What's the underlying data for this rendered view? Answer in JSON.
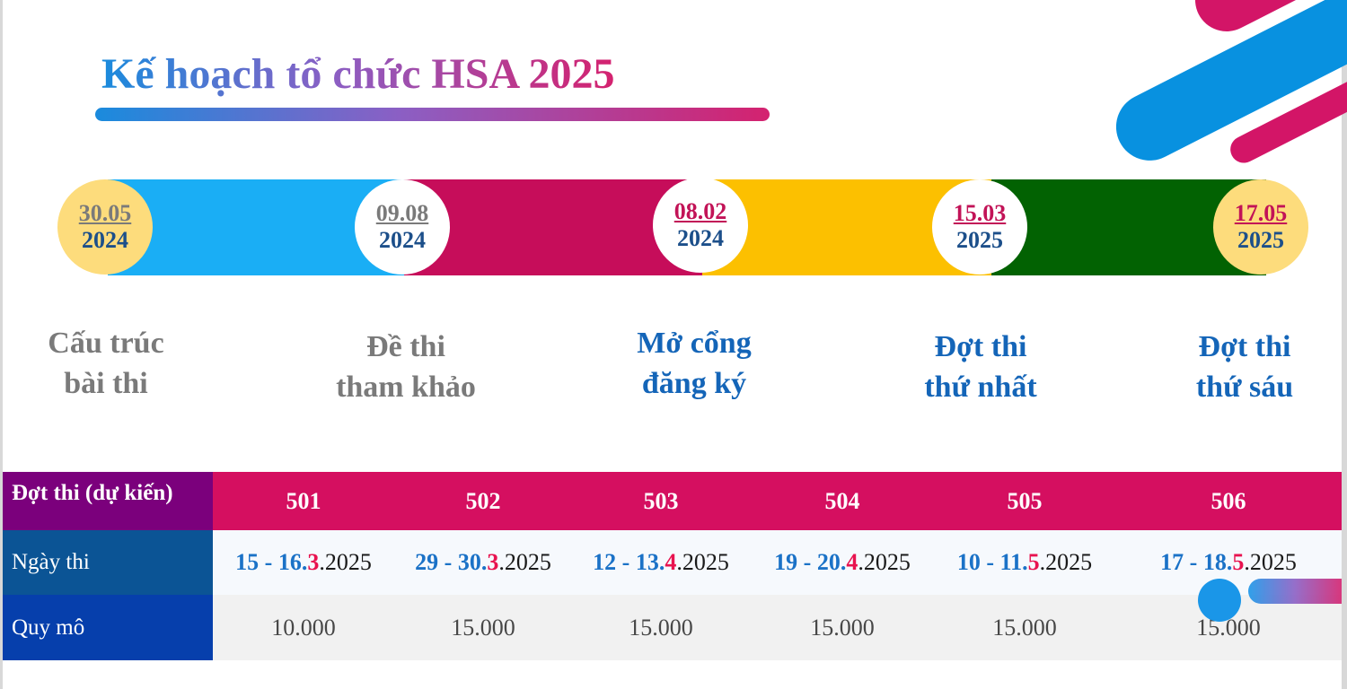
{
  "title": "Kế hoạch tổ chức HSA 2025",
  "timeline": [
    {
      "date": "30.05",
      "year": "2024",
      "label1": "Cấu trúc",
      "label2": "bài thi"
    },
    {
      "date": "09.08",
      "year": "2024",
      "label1": "Đề thi",
      "label2": "tham khảo"
    },
    {
      "date": "08.02",
      "year": "2024",
      "label1": "Mở cổng",
      "label2": "đăng ký"
    },
    {
      "date": "15.03",
      "year": "2025",
      "label1": "Đợt thi",
      "label2": "thứ nhất"
    },
    {
      "date": "17.05",
      "year": "2025",
      "label1": "Đợt thi",
      "label2": "thứ sáu"
    }
  ],
  "colors": {
    "seg1": "#1aaef5",
    "seg2": "#c60d5a",
    "seg3": "#fcc000",
    "seg4": "#026202",
    "header_bg": "#d50f60",
    "accent_pink": "#e8134f",
    "accent_blue": "#1b72c7"
  },
  "table": {
    "row_headers": [
      "Đợt thi (dự kiến)",
      "Ngày thi",
      "Quy mô"
    ],
    "sessions": [
      "501",
      "502",
      "503",
      "504",
      "505",
      "506"
    ],
    "dates": [
      {
        "days": "15 - 16.",
        "month": "3",
        "year": ".2025"
      },
      {
        "days": "29 - 30.",
        "month": "3",
        "year": ".2025"
      },
      {
        "days": "12 - 13.",
        "month": "4",
        "year": ".2025"
      },
      {
        "days": "19 - 20.",
        "month": "4",
        "year": ".2025"
      },
      {
        "days": "10 - 11.",
        "month": "5",
        "year": ".2025"
      },
      {
        "days": "17 - 18.",
        "month": "5",
        "year": ".2025"
      }
    ],
    "scale": [
      "10.000",
      "15.000",
      "15.000",
      "15.000",
      "15.000",
      "15.000"
    ]
  }
}
